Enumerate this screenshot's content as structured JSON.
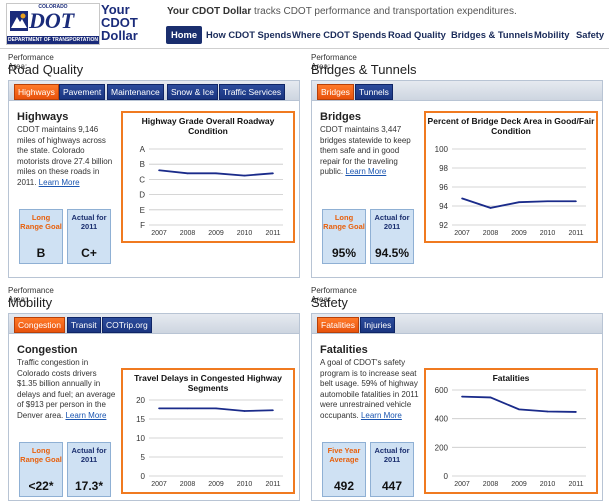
{
  "header": {
    "logo": {
      "state": "COLORADO",
      "mark": "DOT",
      "department": "DEPARTMENT OF TRANSPORTATION"
    },
    "app_name": "Your CDOT Dollar",
    "tagline_bold": "Your CDOT Dollar",
    "tagline_rest": " tracks CDOT performance and transportation expenditures.",
    "nav": [
      "Home",
      "How CDOT Spends",
      "Where CDOT Spends",
      "Road Quality",
      "Bridges & Tunnels",
      "Mobility",
      "Safety"
    ]
  },
  "colors": {
    "navy": "#1a2e6e",
    "orange": "#f07a20",
    "tab_blue": "#1a3580",
    "goal_bg": "#cfe1f3",
    "series": "#1a2b8a"
  },
  "panels": [
    {
      "perf_label": "Performance Area:",
      "title": "Road Quality",
      "tabs": [
        "Highways",
        "Pavement",
        "Maintenance",
        "Snow & Ice",
        "Traffic Services"
      ],
      "section_title": "Highways",
      "description": "CDOT maintains 9,146 miles of highways across the state. Colorado motorists drove 27.4 billion miles on these roads in 2011.",
      "learn_more": "Learn More",
      "goal": {
        "label": "Long Range Goal",
        "value": "B"
      },
      "actual": {
        "label": "Actual for 2011",
        "value": "C+"
      },
      "chart_title": "Highway Grade Overall Roadway Condition"
    },
    {
      "perf_label": "Performance Area:",
      "title": "Bridges & Tunnels",
      "tabs": [
        "Bridges",
        "Tunnels"
      ],
      "section_title": "Bridges",
      "description": "CDOT maintains 3,447 bridges statewide to keep them safe and in good repair for the traveling public.",
      "learn_more": "Learn More",
      "goal": {
        "label": "Long Range Goal",
        "value": "95%"
      },
      "actual": {
        "label": "Actual for 2011",
        "value": "94.5%"
      },
      "chart_title": "Percent of Bridge Deck Area in Good/Fair Condition"
    },
    {
      "perf_label": "Performance Area:",
      "title": "Mobility",
      "tabs": [
        "Congestion",
        "Transit",
        "COTrip.org"
      ],
      "section_title": "Congestion",
      "description": "Traffic congestion in Colorado costs drivers $1.35 billion annually in delays and fuel; an average of $913 per person in the Denver area.",
      "learn_more": "Learn More",
      "goal": {
        "label": "Long Range Goal",
        "value": "<22*"
      },
      "actual": {
        "label": "Actual for 2011",
        "value": "17.3*"
      },
      "chart_title": "Travel Delays in Congested Highway Segments"
    },
    {
      "perf_label": "Performance Area:",
      "title": "Safety",
      "tabs": [
        "Fatalities",
        "Injuries"
      ],
      "section_title": "Fatalities",
      "description": "A goal of CDOT's safety program is to increase seat belt usage. 59% of highway automobile fatalities in 2011 were unrestrained vehicle occupants.",
      "learn_more": "Learn More",
      "goal": {
        "label": "Five Year Average",
        "value": "492"
      },
      "actual": {
        "label": "Actual for 2011",
        "value": "447"
      },
      "chart_title": "Fatalities"
    }
  ],
  "chart_data": [
    {
      "type": "line",
      "title": "Highway Grade Overall Roadway Condition",
      "x": [
        "2007",
        "2008",
        "2009",
        "2010",
        "2011"
      ],
      "y_categories": [
        "A",
        "B",
        "C",
        "D",
        "E",
        "F"
      ],
      "values": [
        2.4,
        2.6,
        2.6,
        2.75,
        2.6
      ],
      "grid": true
    },
    {
      "type": "line",
      "title": "Percent of Bridge Deck Area in Good/Fair Condition",
      "x": [
        "2007",
        "2008",
        "2009",
        "2010",
        "2011"
      ],
      "ylim": [
        92,
        100
      ],
      "yticks": [
        92,
        94,
        96,
        98,
        100
      ],
      "values": [
        94.8,
        93.8,
        94.4,
        94.5,
        94.5
      ],
      "grid": true
    },
    {
      "type": "line",
      "title": "Travel Delays in Congested Highway Segments",
      "x": [
        "2007",
        "2008",
        "2009",
        "2010",
        "2011"
      ],
      "ylim": [
        0,
        20
      ],
      "yticks": [
        0,
        5,
        10,
        15,
        20
      ],
      "values": [
        17.8,
        17.8,
        17.8,
        17.1,
        17.3
      ],
      "grid": true
    },
    {
      "type": "line",
      "title": "Fatalities",
      "x": [
        "2007",
        "2008",
        "2009",
        "2010",
        "2011"
      ],
      "ylim": [
        0,
        600
      ],
      "yticks": [
        0,
        200,
        400,
        600
      ],
      "values": [
        554,
        548,
        465,
        450,
        447
      ],
      "grid": true
    }
  ]
}
